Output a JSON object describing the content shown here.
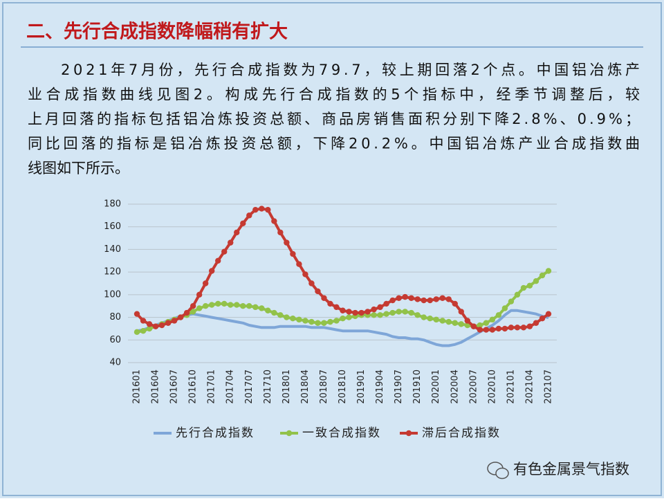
{
  "header": {
    "title": "二、先行合成指数降幅稍有扩大"
  },
  "paragraph": [
    "2021年7月份，先行合成指数为79.7，较上期回落2个点。中国铝冶炼产",
    "业合成指数曲线见图2。构成先行合成指数的5个指标中，经季节调整后，较",
    "上月回落的指标包括铝冶炼投资总额、商品房销售面积分别下降2.8%、0.9%；",
    "同比回落的指标是铝冶炼投资总额，下降20.2%。中国铝冶炼产业合成指数曲",
    "线图如下所示。"
  ],
  "footer": {
    "source": "有色金属景气指数"
  },
  "chart_data": {
    "type": "line",
    "categories": [
      "201601",
      null,
      null,
      "201604",
      null,
      null,
      "201607",
      null,
      null,
      "201610",
      null,
      null,
      "201701",
      null,
      null,
      "201704",
      null,
      null,
      "201707",
      null,
      null,
      "201710",
      null,
      null,
      "201801",
      null,
      null,
      "201804",
      null,
      null,
      "201807",
      null,
      null,
      "201810",
      null,
      null,
      "201901",
      null,
      null,
      "201904",
      null,
      null,
      "201907",
      null,
      null,
      "201910",
      null,
      null,
      "202001",
      null,
      null,
      "202004",
      null,
      null,
      "202007",
      null,
      null,
      "202010",
      null,
      null,
      "202101",
      null,
      null,
      "202104",
      null,
      null,
      "202107"
    ],
    "series": [
      {
        "name": "先行合成指数",
        "color": "#7ea6d8",
        "markers": false,
        "values": [
          68,
          69,
          71,
          73,
          75,
          77,
          79,
          81,
          82,
          83,
          82,
          81,
          80,
          79,
          78,
          77,
          76,
          75,
          73,
          72,
          71,
          71,
          71,
          72,
          72,
          72,
          72,
          72,
          71,
          71,
          71,
          70,
          69,
          68,
          68,
          68,
          68,
          68,
          67,
          66,
          65,
          63,
          62,
          62,
          61,
          61,
          60,
          58,
          56,
          55,
          55,
          56,
          58,
          61,
          64,
          67,
          70,
          73,
          77,
          82,
          86,
          86,
          85,
          84,
          83,
          81,
          79.7
        ]
      },
      {
        "name": "一致合成指数",
        "color": "#92c24a",
        "markers": true,
        "values": [
          67,
          68,
          70,
          72,
          74,
          76,
          78,
          80,
          82,
          85,
          88,
          90,
          91,
          92,
          92,
          91,
          91,
          90,
          90,
          89,
          88,
          86,
          84,
          82,
          80,
          79,
          78,
          77,
          76,
          75,
          75,
          76,
          77,
          79,
          80,
          81,
          82,
          82,
          82,
          82,
          83,
          84,
          85,
          85,
          84,
          82,
          80,
          79,
          78,
          77,
          76,
          75,
          74,
          73,
          72,
          73,
          75,
          78,
          82,
          88,
          94,
          100,
          106,
          108,
          112,
          117,
          121
        ]
      },
      {
        "name": "滞后合成指数",
        "color": "#c53a32",
        "markers": true,
        "values": [
          83,
          77,
          74,
          72,
          73,
          75,
          77,
          80,
          84,
          90,
          100,
          110,
          121,
          130,
          138,
          146,
          155,
          163,
          170,
          175,
          176,
          175,
          165,
          155,
          146,
          136,
          127,
          118,
          110,
          103,
          97,
          92,
          89,
          86,
          85,
          84,
          84,
          85,
          87,
          89,
          92,
          95,
          97,
          98,
          97,
          96,
          95,
          95,
          96,
          97,
          96,
          92,
          85,
          77,
          72,
          69,
          69,
          69,
          70,
          70,
          71,
          71,
          71,
          72,
          75,
          79,
          83
        ]
      }
    ],
    "ylim": [
      40,
      180
    ],
    "yticks": [
      40,
      60,
      80,
      100,
      120,
      140,
      160,
      180
    ],
    "grid": true,
    "legend": "bottom"
  }
}
